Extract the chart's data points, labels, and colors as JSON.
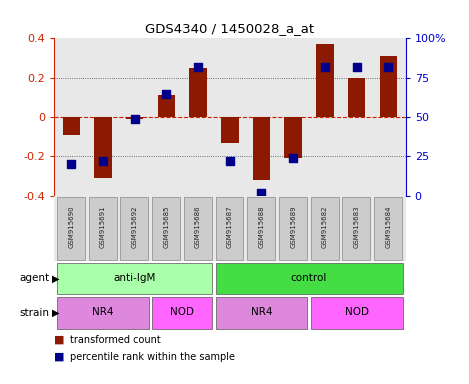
{
  "title": "GDS4340 / 1450028_a_at",
  "samples": [
    "GSM915690",
    "GSM915691",
    "GSM915692",
    "GSM915685",
    "GSM915686",
    "GSM915687",
    "GSM915688",
    "GSM915689",
    "GSM915682",
    "GSM915683",
    "GSM915684"
  ],
  "transformed_count": [
    -0.09,
    -0.31,
    -0.01,
    0.11,
    0.25,
    -0.13,
    -0.32,
    -0.21,
    0.37,
    0.2,
    0.31
  ],
  "percentile_rank": [
    20,
    22,
    49,
    65,
    82,
    22,
    2,
    24,
    82,
    82,
    82
  ],
  "ylim": [
    -0.4,
    0.4
  ],
  "yticks_left": [
    -0.4,
    -0.2,
    0,
    0.2,
    0.4
  ],
  "yticks_right": [
    0,
    25,
    50,
    75,
    100
  ],
  "agent_groups": [
    {
      "label": "anti-IgM",
      "start": 0,
      "end": 5,
      "color": "#aaffaa"
    },
    {
      "label": "control",
      "start": 5,
      "end": 11,
      "color": "#44dd44"
    }
  ],
  "strain_groups": [
    {
      "label": "NR4",
      "start": 0,
      "end": 3,
      "color": "#dd88dd"
    },
    {
      "label": "NOD",
      "start": 3,
      "end": 5,
      "color": "#ff66ff"
    },
    {
      "label": "NR4",
      "start": 5,
      "end": 8,
      "color": "#dd88dd"
    },
    {
      "label": "NOD",
      "start": 8,
      "end": 11,
      "color": "#ff66ff"
    }
  ],
  "bar_color": "#8b1a00",
  "dot_color": "#00008b",
  "bar_width": 0.55,
  "dot_size": 40,
  "zero_line_color": "#cc2200",
  "dotted_line_color": "#444444",
  "bg_color": "#e8e8e8",
  "ylabel_left_color": "#cc2200",
  "ylabel_right_color": "#0000cc",
  "label_box_color": "#cccccc",
  "label_box_edge": "#888888"
}
